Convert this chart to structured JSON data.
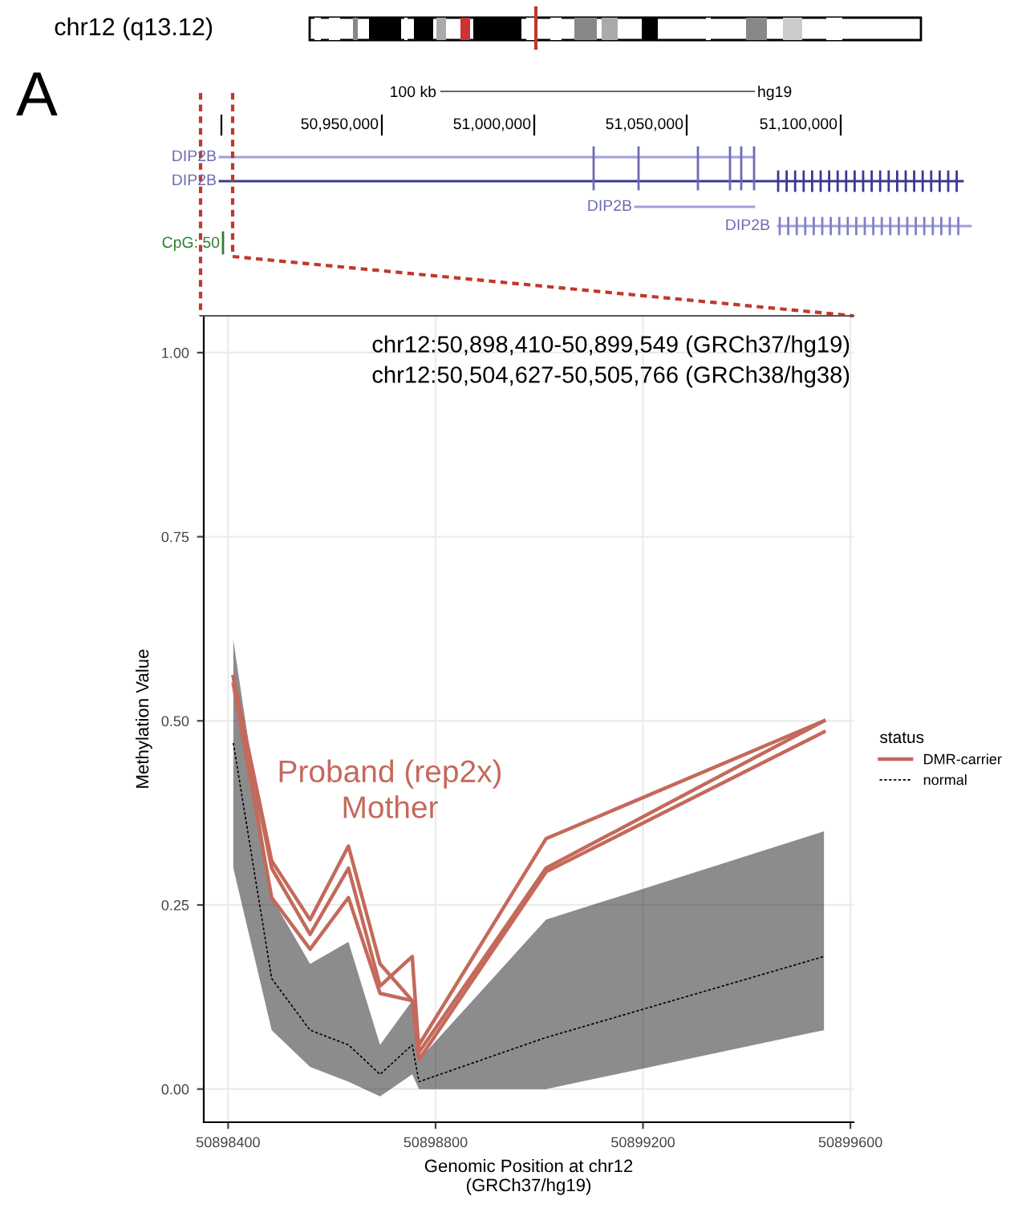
{
  "chart_data": {
    "type": "line",
    "xlabel": "Genomic Position at chr12\n(GRCh37/hg19)",
    "ylabel": "Methylation Value",
    "legend_title": "status",
    "legend": "right",
    "grid": true,
    "x": [
      50898410,
      50898484,
      50898558,
      50898632,
      50898693,
      50898755,
      50898768,
      50899013,
      50899549
    ],
    "xlim": [
      50898353,
      50899606
    ],
    "xticks": [
      50898400,
      50898800,
      50899200,
      50899600
    ],
    "ylim": [
      -0.045,
      1.05
    ],
    "yticks": [
      {
        "value": 0,
        "label": "0.00"
      },
      {
        "value": 0.25,
        "label": "0.25"
      },
      {
        "value": 0.5,
        "label": "0.50"
      },
      {
        "value": 0.75,
        "label": "0.75"
      },
      {
        "value": 1,
        "label": "1.00"
      }
    ],
    "series": [
      {
        "name": "DMR-carrier",
        "color": "#c4695b",
        "line_style": "solid",
        "values": [
          0.56,
          0.31,
          0.23,
          0.33,
          0.17,
          0.12,
          0.06,
          0.34,
          0.5
        ]
      },
      {
        "color": "#c4695b",
        "line_style": "solid",
        "values": [
          0.56,
          0.3,
          0.21,
          0.3,
          0.14,
          0.18,
          0.05,
          0.3,
          0.5
        ]
      },
      {
        "color": "#c4695b",
        "line_style": "solid",
        "values": [
          0.55,
          0.26,
          0.19,
          0.26,
          0.13,
          0.12,
          0.04,
          0.295,
          0.485
        ]
      },
      {
        "name": "normal",
        "color": "#000000",
        "line_style": "dashed",
        "values": [
          0.47,
          0.15,
          0.08,
          0.06,
          0.02,
          0.06,
          0.01,
          0.07,
          0.18
        ],
        "lower": [
          0.3,
          0.08,
          0.03,
          0.01,
          -0.01,
          0.02,
          0.0,
          0.0,
          0.08
        ],
        "upper": [
          0.61,
          0.26,
          0.17,
          0.2,
          0.06,
          0.12,
          0.04,
          0.23,
          0.35
        ]
      }
    ],
    "annotations": [
      "chr12 (q13.12)",
      "A",
      "100 kb",
      "hg19",
      "50,950,000",
      "51,000,000",
      "51,050,000",
      "51,100,000",
      "DIP2B",
      "DIP2B",
      "DIP2B",
      "DIP2B",
      "CpG: 50",
      "chr12:50,898,410-50,899,549 (GRCh37/hg19)",
      "chr12:50,504,627-50,505,766 (GRCh38/hg38)",
      "Proband (rep2x)\nMother"
    ]
  }
}
